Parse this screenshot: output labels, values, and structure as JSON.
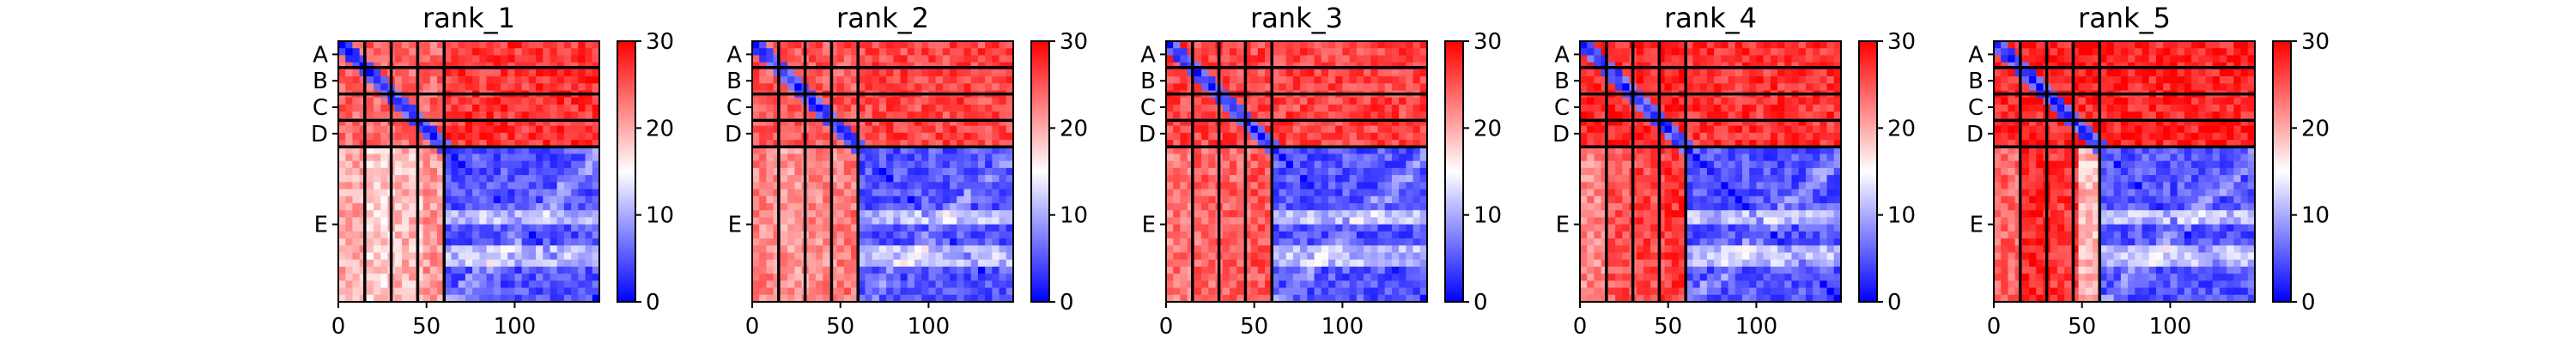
{
  "chart_data": [
    {
      "type": "heatmap",
      "title": "rank_1",
      "chains": [
        "A",
        "B",
        "C",
        "D",
        "E"
      ],
      "chain_boundaries": [
        0,
        15,
        30,
        45,
        60,
        148
      ],
      "xlim": [
        0,
        148
      ],
      "xticks": [
        0,
        50,
        100
      ],
      "colorbar": {
        "min": 0,
        "max": 30,
        "ticks": [
          0,
          10,
          20,
          30
        ],
        "colors": [
          "#0000ff",
          "#ffffff",
          "#ff0000"
        ]
      },
      "levels": {
        "small_small": 24,
        "small_large": 27,
        "large_small": 16,
        "large_large": 5,
        "stripe_cols": [
          20,
          18,
          19,
          21
        ]
      }
    },
    {
      "type": "heatmap",
      "title": "rank_2",
      "chains": [
        "A",
        "B",
        "C",
        "D",
        "E"
      ],
      "chain_boundaries": [
        0,
        15,
        30,
        45,
        60,
        148
      ],
      "xlim": [
        0,
        148
      ],
      "xticks": [
        0,
        50,
        100
      ],
      "colorbar": {
        "min": 0,
        "max": 30,
        "ticks": [
          0,
          10,
          20,
          30
        ],
        "colors": [
          "#0000ff",
          "#ffffff",
          "#ff0000"
        ]
      },
      "levels": {
        "small_small": 25,
        "small_large": 26,
        "large_small": 19,
        "large_large": 5,
        "stripe_cols": [
          22,
          21,
          22,
          23
        ]
      }
    },
    {
      "type": "heatmap",
      "title": "rank_3",
      "chains": [
        "A",
        "B",
        "C",
        "D",
        "E"
      ],
      "chain_boundaries": [
        0,
        15,
        30,
        45,
        60,
        148
      ],
      "xlim": [
        0,
        148
      ],
      "xticks": [
        0,
        50,
        100
      ],
      "colorbar": {
        "min": 0,
        "max": 30,
        "ticks": [
          0,
          10,
          20,
          30
        ],
        "colors": [
          "#0000ff",
          "#ffffff",
          "#ff0000"
        ]
      },
      "levels": {
        "small_small": 26,
        "small_large": 26,
        "large_small": 20,
        "large_large": 5,
        "stripe_cols": [
          23,
          24,
          24,
          25
        ]
      }
    },
    {
      "type": "heatmap",
      "title": "rank_4",
      "chains": [
        "A",
        "B",
        "C",
        "D",
        "E"
      ],
      "chain_boundaries": [
        0,
        15,
        30,
        45,
        60,
        148
      ],
      "xlim": [
        0,
        148
      ],
      "xticks": [
        0,
        50,
        100
      ],
      "colorbar": {
        "min": 0,
        "max": 30,
        "ticks": [
          0,
          10,
          20,
          30
        ],
        "colors": [
          "#0000ff",
          "#ffffff",
          "#ff0000"
        ]
      },
      "levels": {
        "small_small": 28,
        "small_large": 27,
        "large_small": 22,
        "large_large": 5,
        "stripe_cols": [
          22,
          25,
          26,
          27
        ]
      }
    },
    {
      "type": "heatmap",
      "title": "rank_5",
      "chains": [
        "A",
        "B",
        "C",
        "D",
        "E"
      ],
      "chain_boundaries": [
        0,
        15,
        30,
        45,
        60,
        148
      ],
      "xlim": [
        0,
        148
      ],
      "xticks": [
        0,
        50,
        100
      ],
      "colorbar": {
        "min": 0,
        "max": 30,
        "ticks": [
          0,
          10,
          20,
          30
        ],
        "colors": [
          "#0000ff",
          "#ffffff",
          "#ff0000"
        ]
      },
      "levels": {
        "small_small": 28,
        "small_large": 28,
        "large_small": 23,
        "large_large": 5,
        "stripe_cols": [
          24,
          28,
          27,
          19
        ]
      }
    }
  ]
}
